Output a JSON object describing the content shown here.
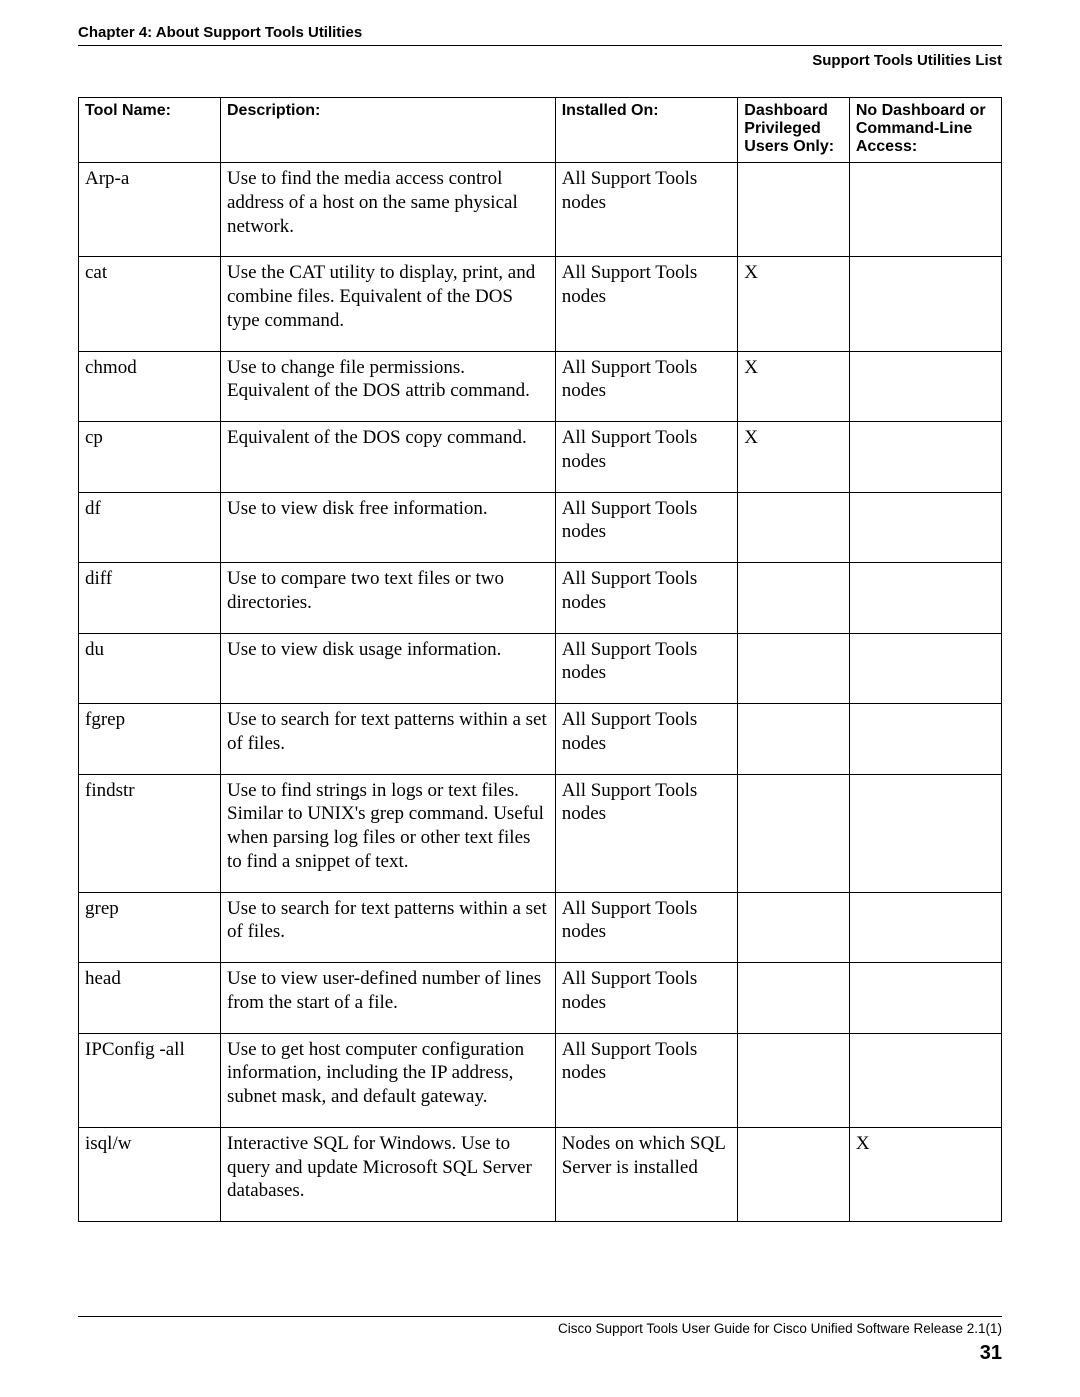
{
  "header": {
    "chapter": "Chapter 4: About Support Tools Utilities",
    "subtitle": "Support Tools Utilities List"
  },
  "table": {
    "headers": {
      "tool": "Tool Name:",
      "desc": "Description:",
      "inst": "Installed On:",
      "dash": "Dashboard Privileged Users Only:",
      "nodash": "No Dashboard or Command-Line Access:"
    },
    "rows": [
      {
        "tool": "Arp-a",
        "desc": "Use to find the media access control address of a host on the same physical network.",
        "inst": "All Support Tools nodes",
        "dash": "",
        "nodash": ""
      },
      {
        "tool": "cat",
        "desc": "Use the CAT utility to display, print, and combine files. Equivalent of the DOS type command.",
        "inst": "All Support Tools nodes",
        "dash": "X",
        "nodash": ""
      },
      {
        "tool": "chmod",
        "desc": "Use to change file permissions. Equivalent of the DOS attrib command.",
        "inst": "All Support Tools nodes",
        "dash": "X",
        "nodash": ""
      },
      {
        "tool": "cp",
        "desc": "Equivalent of the DOS copy command.",
        "inst": "All Support Tools nodes",
        "dash": "X",
        "nodash": ""
      },
      {
        "tool": "df",
        "desc": "Use to view disk free information.",
        "inst": "All Support Tools nodes",
        "dash": "",
        "nodash": ""
      },
      {
        "tool": "diff",
        "desc": "Use to compare two text files or two directories.",
        "inst": "All Support Tools nodes",
        "dash": "",
        "nodash": ""
      },
      {
        "tool": "du",
        "desc": "Use to view disk usage information.",
        "inst": "All Support Tools nodes",
        "dash": "",
        "nodash": ""
      },
      {
        "tool": "fgrep",
        "desc": "Use to search for text patterns within a set of files.",
        "inst": "All Support Tools nodes",
        "dash": "",
        "nodash": ""
      },
      {
        "tool": "findstr",
        "desc": "Use to find strings in logs or text files. Similar to UNIX's grep command. Useful when parsing log files or other text files to find a snippet of text.",
        "inst": "All Support Tools nodes",
        "dash": "",
        "nodash": ""
      },
      {
        "tool": "grep",
        "desc": "Use to search for text patterns within a set of files.",
        "inst": "All Support Tools nodes",
        "dash": "",
        "nodash": ""
      },
      {
        "tool": "head",
        "desc": "Use to view user-defined number of lines from the start of a file.",
        "inst": "All Support Tools nodes",
        "dash": "",
        "nodash": ""
      },
      {
        "tool": "IPConfig -all",
        "desc": "Use to get host computer configuration information, including the IP address, subnet mask, and default gateway.",
        "inst": "All Support Tools nodes",
        "dash": "",
        "nodash": ""
      },
      {
        "tool": "isql/w",
        "desc": "Interactive SQL for Windows. Use to query and update Microsoft SQL Server databases.",
        "inst": "Nodes on which SQL Server is installed",
        "dash": "",
        "nodash": "X"
      }
    ]
  },
  "footer": {
    "guide": "Cisco Support Tools User Guide for Cisco Unified Software Release 2.1(1)",
    "page": "31"
  }
}
